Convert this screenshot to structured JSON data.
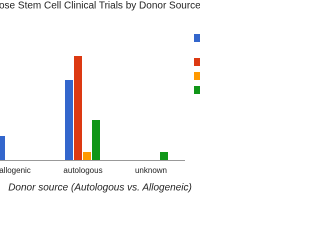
{
  "chart_data": {
    "type": "bar",
    "title": "ose Stem Cell Clinical Trials by Donor Source",
    "x_label": "Donor source (Autologous vs. Allogeneic)",
    "categories": [
      "allogenic",
      "autologous",
      "unknown"
    ],
    "series": [
      {
        "color": "#3366cc",
        "values": [
          3,
          10,
          0
        ]
      },
      {
        "color": "#dc3912",
        "values": [
          0,
          13,
          0
        ]
      },
      {
        "color": "#ff9900",
        "values": [
          0,
          1,
          0
        ]
      },
      {
        "color": "#109618",
        "values": [
          0,
          5,
          1
        ]
      }
    ],
    "ylim": [
      0,
      20
    ],
    "legend": "right"
  }
}
